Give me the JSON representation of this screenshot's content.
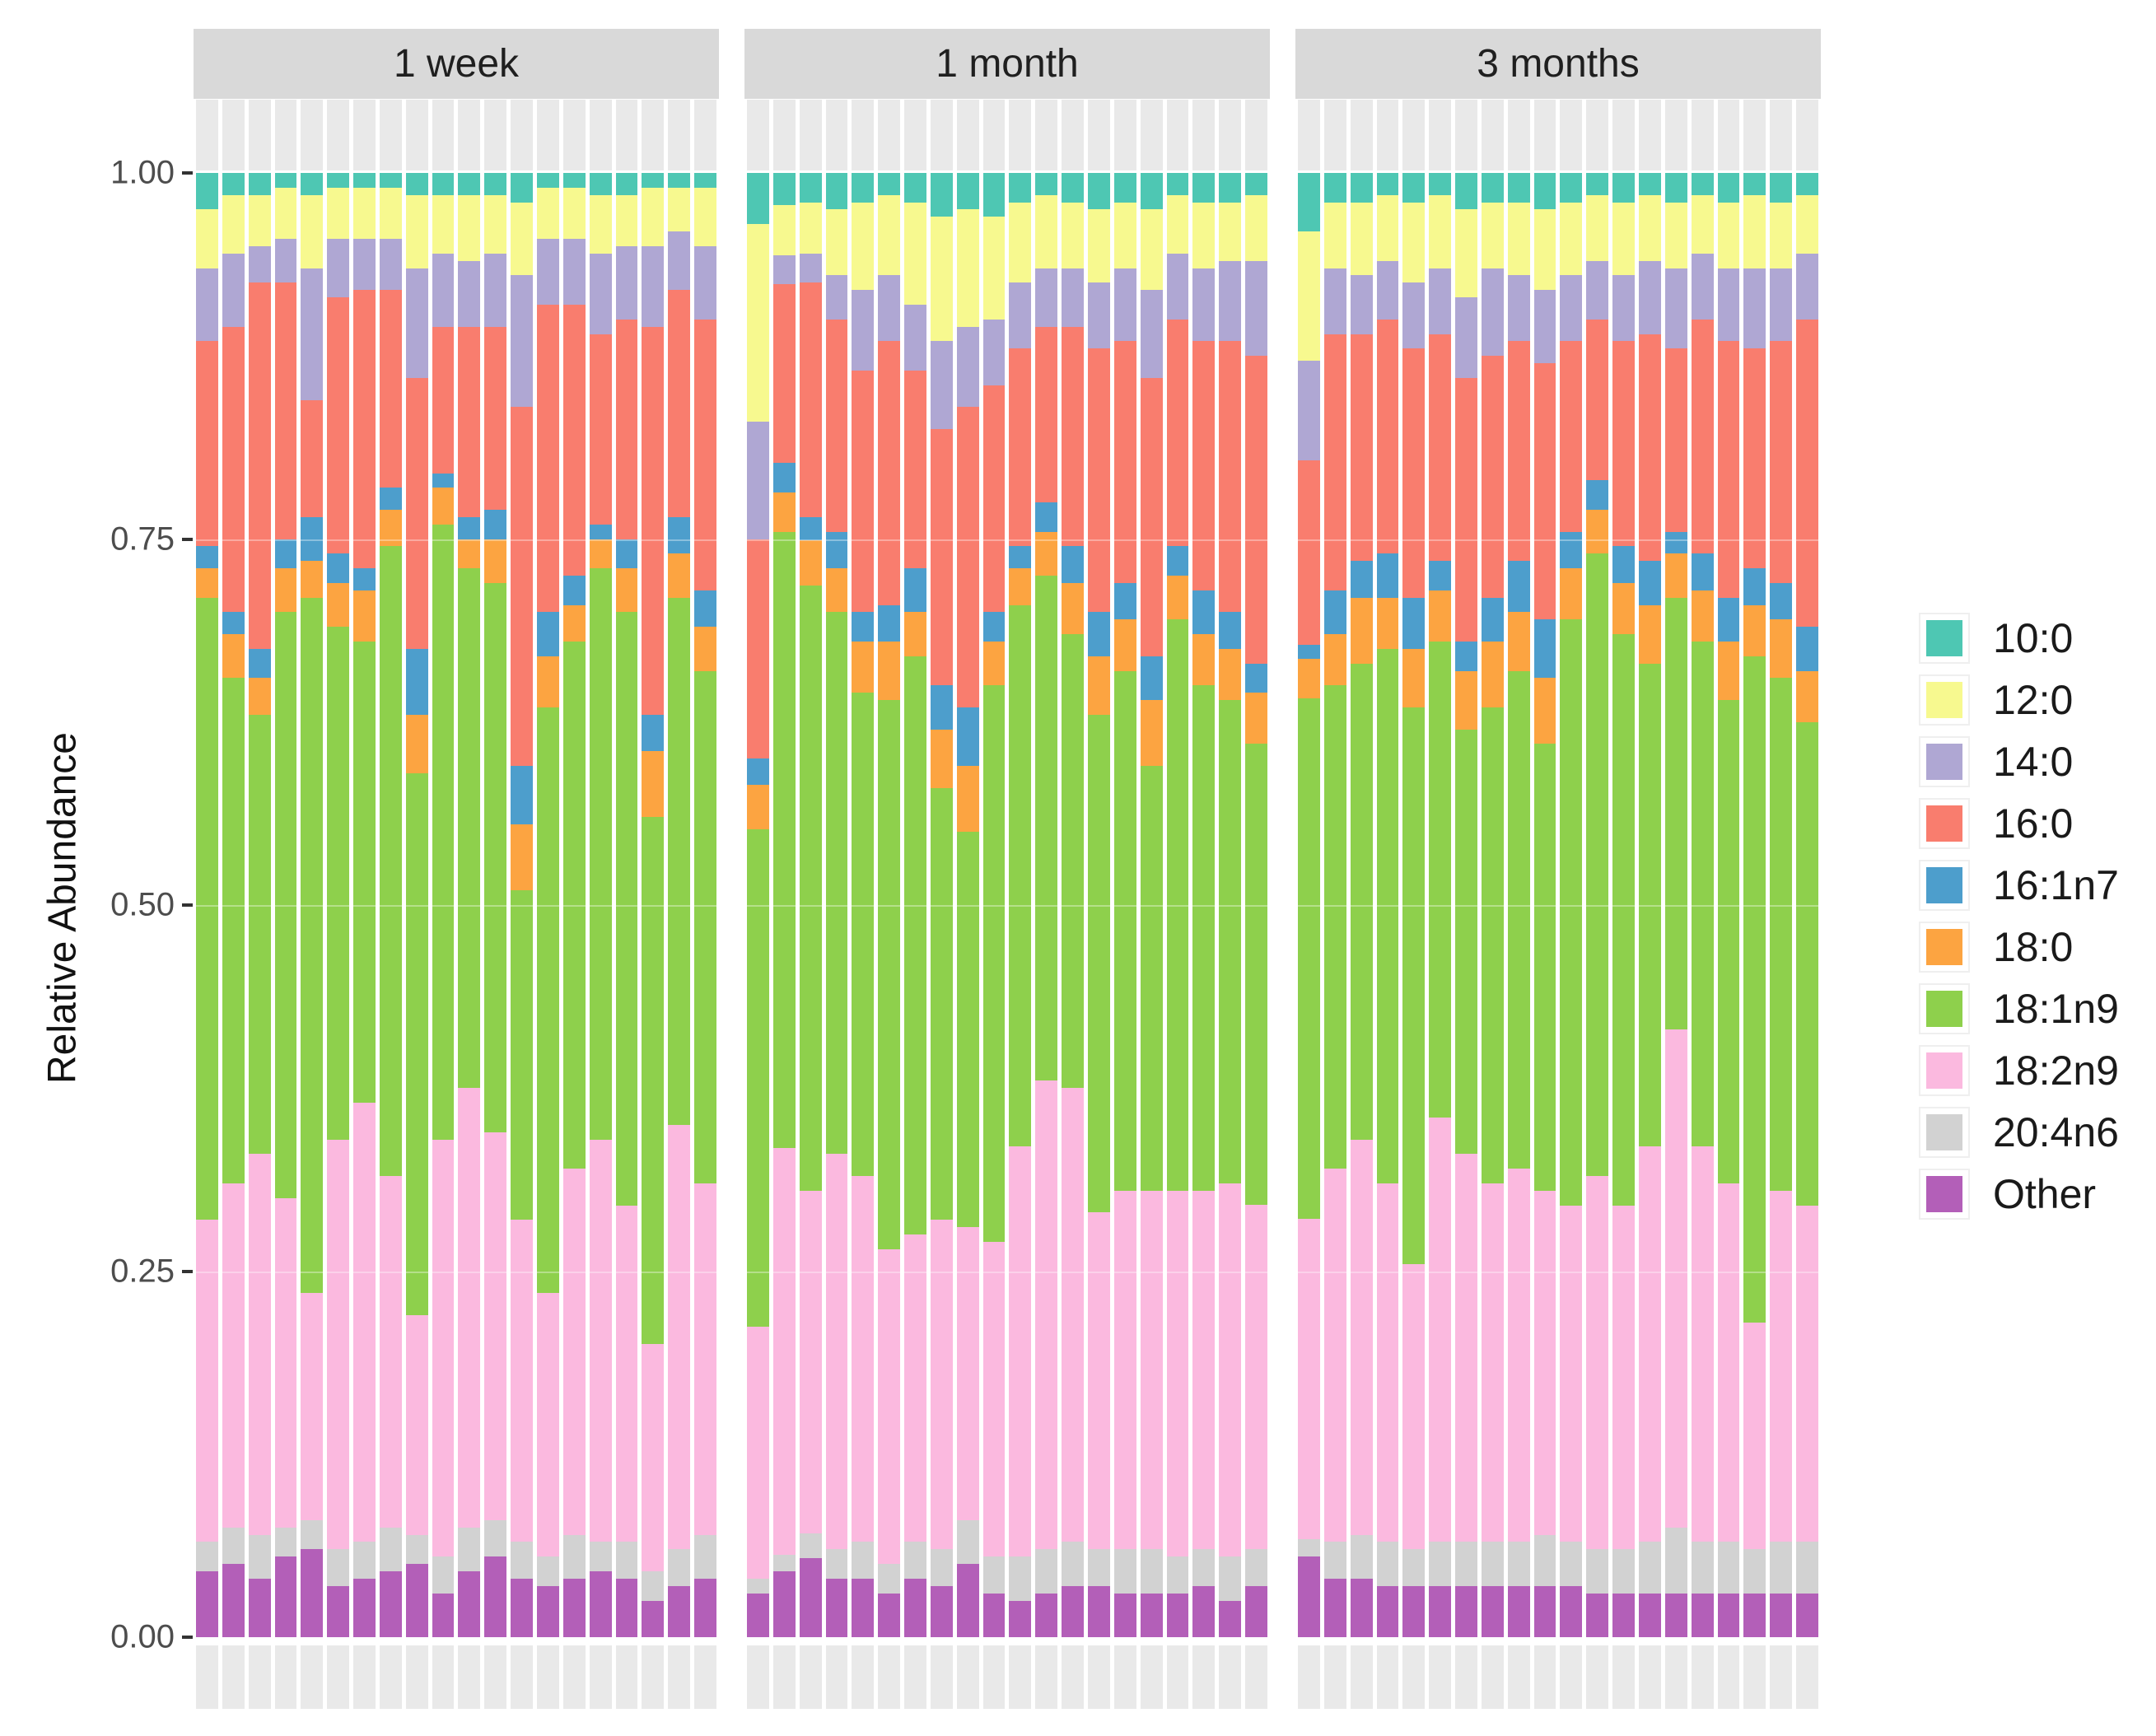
{
  "chart_data": {
    "type": "bar",
    "stacked": true,
    "orientation": "vertical",
    "title": "",
    "xlabel": "",
    "ylabel": "Relative Abundance",
    "ylim": [
      0.0,
      1.0
    ],
    "grid": "faint-white-horizontal",
    "legend_position": "right",
    "x_tick_labels": "none",
    "categories": [
      "10:0",
      "12:0",
      "14:0",
      "16:0",
      "16:1n7",
      "18:0",
      "18:1n9",
      "18:2n9",
      "20:4n6",
      "Other"
    ],
    "colors": [
      "#4ec7b3",
      "#f7f98f",
      "#afa7d3",
      "#f97d6e",
      "#4d9ecc",
      "#fca441",
      "#8ed04c",
      "#fbb9df",
      "#d2d2d2",
      "#b35fb8"
    ],
    "stack_order_top_to_bottom": [
      "10:0",
      "12:0",
      "14:0",
      "16:0",
      "16:1n7",
      "18:0",
      "18:1n9",
      "18:2n9",
      "20:4n6",
      "Other"
    ],
    "y_axis": {
      "label": "Relative Abundance",
      "ticks": [
        {
          "label": "1.00",
          "value": 1.0
        },
        {
          "label": "0.75",
          "value": 0.75
        },
        {
          "label": "0.50",
          "value": 0.5
        },
        {
          "label": "0.25",
          "value": 0.25
        },
        {
          "label": "0.00",
          "value": 0.0
        }
      ]
    },
    "facets": [
      {
        "label": "1 week",
        "bars": [
          [
            0.025,
            0.04,
            0.05,
            0.14,
            0.015,
            0.02,
            0.425,
            0.22,
            0.02,
            0.045
          ],
          [
            0.015,
            0.04,
            0.05,
            0.195,
            0.015,
            0.03,
            0.345,
            0.235,
            0.025,
            0.05
          ],
          [
            0.015,
            0.035,
            0.025,
            0.25,
            0.02,
            0.025,
            0.3,
            0.26,
            0.03,
            0.04
          ],
          [
            0.01,
            0.035,
            0.03,
            0.175,
            0.02,
            0.03,
            0.4,
            0.225,
            0.02,
            0.055
          ],
          [
            0.015,
            0.05,
            0.09,
            0.08,
            0.03,
            0.025,
            0.475,
            0.155,
            0.02,
            0.06
          ],
          [
            0.01,
            0.035,
            0.04,
            0.175,
            0.02,
            0.03,
            0.35,
            0.28,
            0.025,
            0.035
          ],
          [
            0.01,
            0.035,
            0.035,
            0.19,
            0.015,
            0.035,
            0.315,
            0.3,
            0.025,
            0.04
          ],
          [
            0.01,
            0.035,
            0.035,
            0.135,
            0.015,
            0.025,
            0.43,
            0.24,
            0.03,
            0.045
          ],
          [
            0.015,
            0.05,
            0.075,
            0.185,
            0.045,
            0.04,
            0.37,
            0.15,
            0.02,
            0.05
          ],
          [
            0.015,
            0.04,
            0.05,
            0.1,
            0.01,
            0.025,
            0.42,
            0.285,
            0.025,
            0.03
          ],
          [
            0.015,
            0.045,
            0.045,
            0.13,
            0.015,
            0.02,
            0.355,
            0.3,
            0.03,
            0.045
          ],
          [
            0.015,
            0.04,
            0.05,
            0.125,
            0.02,
            0.03,
            0.375,
            0.265,
            0.025,
            0.055
          ],
          [
            0.02,
            0.05,
            0.09,
            0.245,
            0.04,
            0.045,
            0.225,
            0.22,
            0.025,
            0.04
          ],
          [
            0.01,
            0.035,
            0.045,
            0.21,
            0.03,
            0.035,
            0.4,
            0.18,
            0.02,
            0.035
          ],
          [
            0.01,
            0.035,
            0.045,
            0.185,
            0.02,
            0.025,
            0.36,
            0.25,
            0.03,
            0.04
          ],
          [
            0.015,
            0.04,
            0.055,
            0.13,
            0.01,
            0.02,
            0.39,
            0.275,
            0.02,
            0.045
          ],
          [
            0.015,
            0.035,
            0.05,
            0.15,
            0.02,
            0.03,
            0.405,
            0.23,
            0.025,
            0.04
          ],
          [
            0.01,
            0.04,
            0.055,
            0.265,
            0.025,
            0.045,
            0.36,
            0.155,
            0.02,
            0.025
          ],
          [
            0.01,
            0.03,
            0.04,
            0.155,
            0.025,
            0.03,
            0.36,
            0.29,
            0.025,
            0.035
          ],
          [
            0.01,
            0.04,
            0.05,
            0.185,
            0.025,
            0.03,
            0.35,
            0.24,
            0.03,
            0.04
          ]
        ]
      },
      {
        "label": "1 month",
        "bars": [
          [
            0.035,
            0.135,
            0.08,
            0.15,
            0.018,
            0.03,
            0.34,
            0.172,
            0.01,
            0.03
          ],
          [
            0.022,
            0.034,
            0.02,
            0.122,
            0.02,
            0.027,
            0.421,
            0.278,
            0.011,
            0.045
          ],
          [
            0.02,
            0.035,
            0.02,
            0.16,
            0.016,
            0.031,
            0.413,
            0.234,
            0.017,
            0.054
          ],
          [
            0.025,
            0.045,
            0.03,
            0.145,
            0.025,
            0.03,
            0.37,
            0.27,
            0.02,
            0.04
          ],
          [
            0.02,
            0.06,
            0.055,
            0.165,
            0.02,
            0.035,
            0.33,
            0.25,
            0.025,
            0.04
          ],
          [
            0.015,
            0.055,
            0.045,
            0.18,
            0.025,
            0.04,
            0.375,
            0.215,
            0.02,
            0.03
          ],
          [
            0.02,
            0.07,
            0.045,
            0.135,
            0.03,
            0.03,
            0.395,
            0.21,
            0.025,
            0.04
          ],
          [
            0.03,
            0.085,
            0.06,
            0.175,
            0.03,
            0.04,
            0.295,
            0.225,
            0.025,
            0.035
          ],
          [
            0.025,
            0.08,
            0.055,
            0.205,
            0.04,
            0.045,
            0.27,
            0.2,
            0.03,
            0.05
          ],
          [
            0.03,
            0.07,
            0.045,
            0.155,
            0.02,
            0.03,
            0.38,
            0.215,
            0.025,
            0.03
          ],
          [
            0.02,
            0.055,
            0.045,
            0.135,
            0.015,
            0.025,
            0.37,
            0.28,
            0.03,
            0.025
          ],
          [
            0.015,
            0.05,
            0.04,
            0.12,
            0.02,
            0.03,
            0.345,
            0.32,
            0.03,
            0.03
          ],
          [
            0.02,
            0.045,
            0.04,
            0.15,
            0.025,
            0.035,
            0.31,
            0.31,
            0.03,
            0.035
          ],
          [
            0.025,
            0.05,
            0.045,
            0.18,
            0.03,
            0.04,
            0.34,
            0.23,
            0.025,
            0.035
          ],
          [
            0.02,
            0.045,
            0.05,
            0.165,
            0.025,
            0.035,
            0.355,
            0.245,
            0.03,
            0.03
          ],
          [
            0.025,
            0.055,
            0.06,
            0.19,
            0.03,
            0.045,
            0.29,
            0.245,
            0.03,
            0.03
          ],
          [
            0.015,
            0.04,
            0.045,
            0.155,
            0.02,
            0.03,
            0.39,
            0.25,
            0.025,
            0.03
          ],
          [
            0.02,
            0.045,
            0.05,
            0.17,
            0.03,
            0.035,
            0.345,
            0.245,
            0.025,
            0.035
          ],
          [
            0.02,
            0.04,
            0.055,
            0.185,
            0.025,
            0.035,
            0.33,
            0.255,
            0.03,
            0.025
          ],
          [
            0.015,
            0.045,
            0.065,
            0.21,
            0.02,
            0.035,
            0.315,
            0.235,
            0.025,
            0.035
          ]
        ]
      },
      {
        "label": "3 months",
        "bars": [
          [
            0.04,
            0.088,
            0.068,
            0.126,
            0.01,
            0.027,
            0.355,
            0.219,
            0.012,
            0.055
          ],
          [
            0.02,
            0.045,
            0.045,
            0.175,
            0.03,
            0.035,
            0.33,
            0.255,
            0.025,
            0.04
          ],
          [
            0.02,
            0.05,
            0.04,
            0.155,
            0.025,
            0.045,
            0.325,
            0.27,
            0.03,
            0.04
          ],
          [
            0.015,
            0.045,
            0.04,
            0.16,
            0.03,
            0.035,
            0.365,
            0.245,
            0.03,
            0.035
          ],
          [
            0.02,
            0.055,
            0.045,
            0.17,
            0.035,
            0.04,
            0.38,
            0.195,
            0.025,
            0.035
          ],
          [
            0.015,
            0.05,
            0.045,
            0.155,
            0.02,
            0.035,
            0.325,
            0.29,
            0.03,
            0.035
          ],
          [
            0.025,
            0.06,
            0.055,
            0.18,
            0.02,
            0.04,
            0.29,
            0.265,
            0.03,
            0.035
          ],
          [
            0.02,
            0.045,
            0.06,
            0.165,
            0.03,
            0.045,
            0.325,
            0.245,
            0.03,
            0.035
          ],
          [
            0.02,
            0.05,
            0.045,
            0.15,
            0.035,
            0.04,
            0.34,
            0.255,
            0.03,
            0.035
          ],
          [
            0.025,
            0.055,
            0.05,
            0.175,
            0.04,
            0.045,
            0.305,
            0.235,
            0.035,
            0.035
          ],
          [
            0.02,
            0.05,
            0.045,
            0.13,
            0.025,
            0.035,
            0.4,
            0.23,
            0.03,
            0.035
          ],
          [
            0.015,
            0.045,
            0.04,
            0.11,
            0.02,
            0.03,
            0.425,
            0.255,
            0.03,
            0.03
          ],
          [
            0.02,
            0.05,
            0.045,
            0.14,
            0.025,
            0.035,
            0.39,
            0.235,
            0.03,
            0.03
          ],
          [
            0.015,
            0.045,
            0.05,
            0.155,
            0.03,
            0.04,
            0.33,
            0.27,
            0.035,
            0.03
          ],
          [
            0.02,
            0.045,
            0.055,
            0.125,
            0.015,
            0.03,
            0.295,
            0.34,
            0.045,
            0.03
          ],
          [
            0.015,
            0.04,
            0.045,
            0.16,
            0.025,
            0.035,
            0.345,
            0.27,
            0.035,
            0.03
          ],
          [
            0.02,
            0.045,
            0.05,
            0.175,
            0.03,
            0.04,
            0.33,
            0.245,
            0.035,
            0.03
          ],
          [
            0.015,
            0.05,
            0.055,
            0.15,
            0.025,
            0.035,
            0.455,
            0.155,
            0.03,
            0.03
          ],
          [
            0.02,
            0.045,
            0.05,
            0.165,
            0.025,
            0.04,
            0.35,
            0.24,
            0.035,
            0.03
          ],
          [
            0.015,
            0.04,
            0.045,
            0.21,
            0.03,
            0.035,
            0.33,
            0.23,
            0.035,
            0.03
          ]
        ]
      }
    ]
  }
}
